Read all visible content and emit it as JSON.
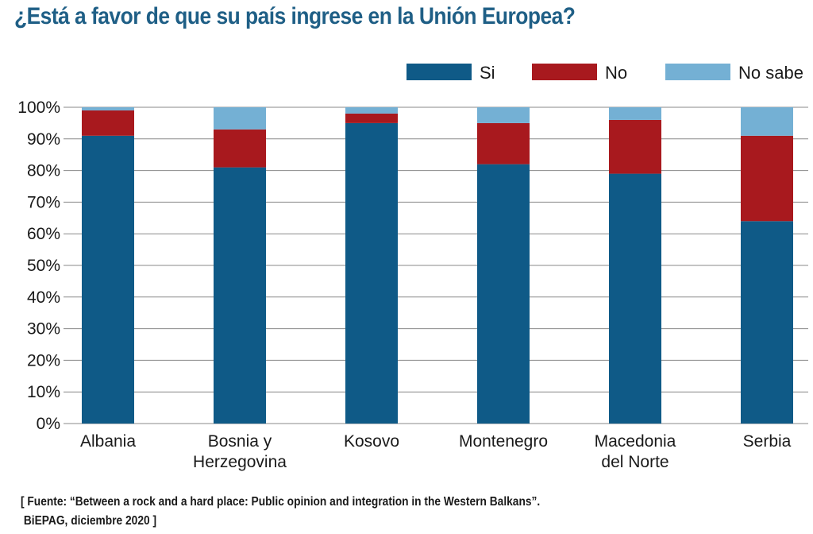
{
  "chart_data": {
    "type": "bar",
    "stacked": true,
    "title": "¿Está a favor de que su país ingrese en la Unión Europea?",
    "xlabel": "",
    "ylabel": "",
    "ylim": [
      0,
      100
    ],
    "yticks": [
      "0%",
      "10%",
      "20%",
      "30%",
      "40%",
      "50%",
      "60%",
      "70%",
      "80%",
      "90%",
      "100%"
    ],
    "grid": true,
    "legend_position": "top-right",
    "categories": [
      [
        "Albania"
      ],
      [
        "Bosnia y",
        "Herzegovina"
      ],
      [
        "Kosovo"
      ],
      [
        "Montenegro"
      ],
      [
        "Macedonia",
        "del Norte"
      ],
      [
        "Serbia"
      ]
    ],
    "series": [
      {
        "name": "Si",
        "color": "#0f5a87",
        "values": [
          91,
          81,
          95,
          82,
          79,
          64
        ]
      },
      {
        "name": "No",
        "color": "#a8191e",
        "values": [
          8,
          12,
          3,
          13,
          17,
          27
        ]
      },
      {
        "name": "No sabe",
        "color": "#74b0d4",
        "values": [
          1,
          7,
          2,
          5,
          4,
          9
        ]
      }
    ]
  },
  "source": {
    "line1": "[ Fuente: “Between a rock and a hard place: Public opinion and integration in the Western Balkans”.",
    "line2": " BiEPAG, diciembre 2020 ]"
  }
}
